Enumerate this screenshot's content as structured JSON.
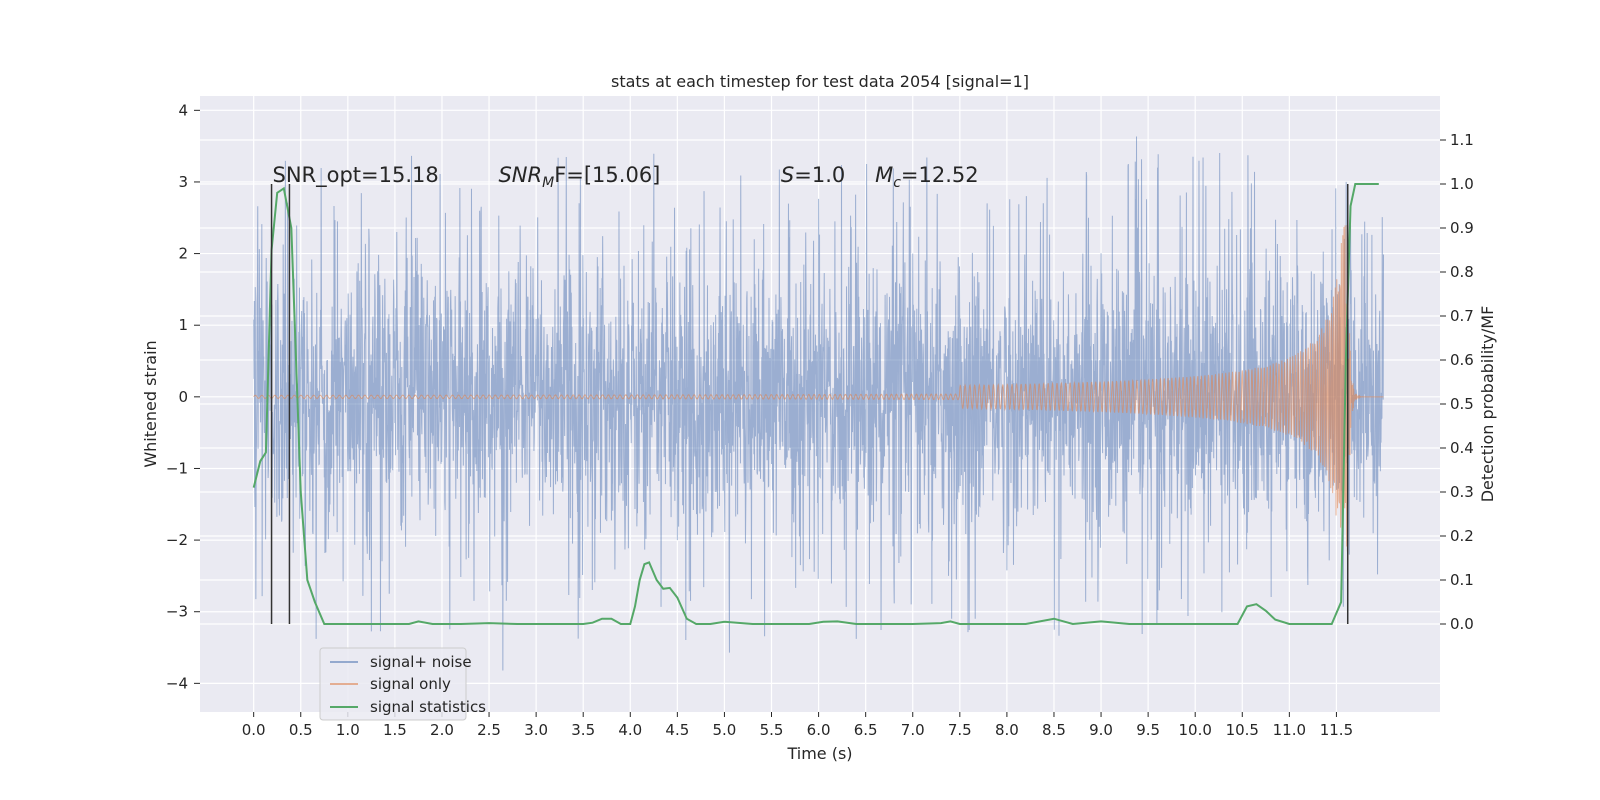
{
  "chart_data": {
    "type": "line",
    "title": "stats at each timestep for test data 2054 [signal=1]",
    "xlabel": "Time (s)",
    "ylabel": "Whitened strain",
    "y2label": "Detection probability/MF",
    "xlim": [
      -0.57,
      12.6
    ],
    "ylim": [
      -4.4,
      4.2
    ],
    "y2lim": [
      -0.2,
      1.2
    ],
    "x_ticks": [
      0.0,
      0.5,
      1.0,
      1.5,
      2.0,
      2.5,
      3.0,
      3.5,
      4.0,
      4.5,
      5.0,
      5.5,
      6.0,
      6.5,
      7.0,
      7.5,
      8.0,
      8.5,
      9.0,
      9.5,
      10.0,
      10.5,
      11.0,
      11.5
    ],
    "x_tick_labels": [
      "0.0",
      "0.5",
      "1.0",
      "1.5",
      "2.0",
      "2.5",
      "3.0",
      "3.5",
      "4.0",
      "4.5",
      "5.0",
      "5.5",
      "6.0",
      "6.5",
      "7.0",
      "7.5",
      "8.0",
      "8.5",
      "9.0",
      "9.5",
      "10.0",
      "10.5",
      "11.0",
      "11.5"
    ],
    "y_ticks": [
      -4,
      -3,
      -2,
      -1,
      0,
      1,
      2,
      3,
      4
    ],
    "y_tick_labels": [
      "−4",
      "−3",
      "−2",
      "−1",
      "0",
      "1",
      "2",
      "3",
      "4"
    ],
    "y2_ticks": [
      0.0,
      0.1,
      0.2,
      0.3,
      0.4,
      0.5,
      0.6,
      0.7,
      0.8,
      0.9,
      1.0,
      1.1
    ],
    "y2_tick_labels": [
      "0.0",
      "0.1",
      "0.2",
      "0.3",
      "0.4",
      "0.5",
      "0.6",
      "0.7",
      "0.8",
      "0.9",
      "1.0",
      "1.1"
    ],
    "grid": true,
    "legend_position": "lower-left",
    "annotations": [
      {
        "text": "SNR_opt=15.18",
        "x": 0.2,
        "y": 3.0
      },
      {
        "text": "SNR",
        "sub": "M",
        "tail": "F=[15.06]",
        "x": 2.6,
        "y": 3.0
      },
      {
        "text": "S",
        "tail": "=1.0",
        "x": 5.6,
        "y": 3.0
      },
      {
        "text": "M",
        "sub": "c",
        "tail": "=12.52",
        "x": 6.6,
        "y": 3.0
      }
    ],
    "vertical_lines": [
      {
        "x": 0.19,
        "y2_range": [
          0.0,
          1.0
        ]
      },
      {
        "x": 0.38,
        "y2_range": [
          0.0,
          1.0
        ]
      },
      {
        "x": 11.62,
        "y2_range": [
          0.0,
          1.0
        ]
      }
    ],
    "series": [
      {
        "name": "signal+ noise",
        "axis": "left",
        "color": "#4c72b0",
        "kind": "noise_band",
        "x_range": [
          0.0,
          12.0
        ],
        "amplitude": 1.3,
        "peak_amplitude": 3.8
      },
      {
        "name": "signal only",
        "axis": "left",
        "color": "#dd8452",
        "kind": "chirp",
        "x_range": [
          0.0,
          12.0
        ],
        "merger_x": 11.62,
        "peak_amplitude": 2.4
      },
      {
        "name": "signal statistics",
        "axis": "right",
        "color": "#55a868",
        "kind": "line",
        "x": [
          0.0,
          0.07,
          0.13,
          0.19,
          0.25,
          0.32,
          0.4,
          0.45,
          0.5,
          0.57,
          0.65,
          0.75,
          1.0,
          1.5,
          1.65,
          1.75,
          1.9,
          2.2,
          2.5,
          2.8,
          3.2,
          3.5,
          3.6,
          3.7,
          3.8,
          3.9,
          4.0,
          4.05,
          4.1,
          4.15,
          4.2,
          4.28,
          4.35,
          4.42,
          4.5,
          4.6,
          4.7,
          4.85,
          5.0,
          5.3,
          5.6,
          5.9,
          6.05,
          6.2,
          6.4,
          6.7,
          7.0,
          7.3,
          7.4,
          7.5,
          7.8,
          8.2,
          8.5,
          8.7,
          9.0,
          9.3,
          9.7,
          10.2,
          10.45,
          10.55,
          10.65,
          10.75,
          10.85,
          11.0,
          11.2,
          11.45,
          11.55,
          11.6,
          11.65,
          11.7,
          11.8,
          11.95
        ],
        "values": [
          0.31,
          0.37,
          0.39,
          0.85,
          0.98,
          0.99,
          0.9,
          0.6,
          0.3,
          0.1,
          0.05,
          0.0,
          0.0,
          0.0,
          0.0,
          0.006,
          0.0,
          0.0,
          0.002,
          0.0,
          0.0,
          0.0,
          0.003,
          0.012,
          0.012,
          0.0,
          0.0,
          0.04,
          0.1,
          0.136,
          0.14,
          0.1,
          0.08,
          0.082,
          0.06,
          0.012,
          0.0,
          0.0,
          0.005,
          0.0,
          0.0,
          0.0,
          0.005,
          0.006,
          0.0,
          0.0,
          0.0,
          0.002,
          0.006,
          0.0,
          0.0,
          0.0,
          0.012,
          0.0,
          0.006,
          0.0,
          0.0,
          0.0,
          0.0,
          0.04,
          0.045,
          0.03,
          0.01,
          0.0,
          0.0,
          0.0,
          0.05,
          0.6,
          0.95,
          1.0,
          1.0,
          1.0
        ]
      }
    ]
  }
}
